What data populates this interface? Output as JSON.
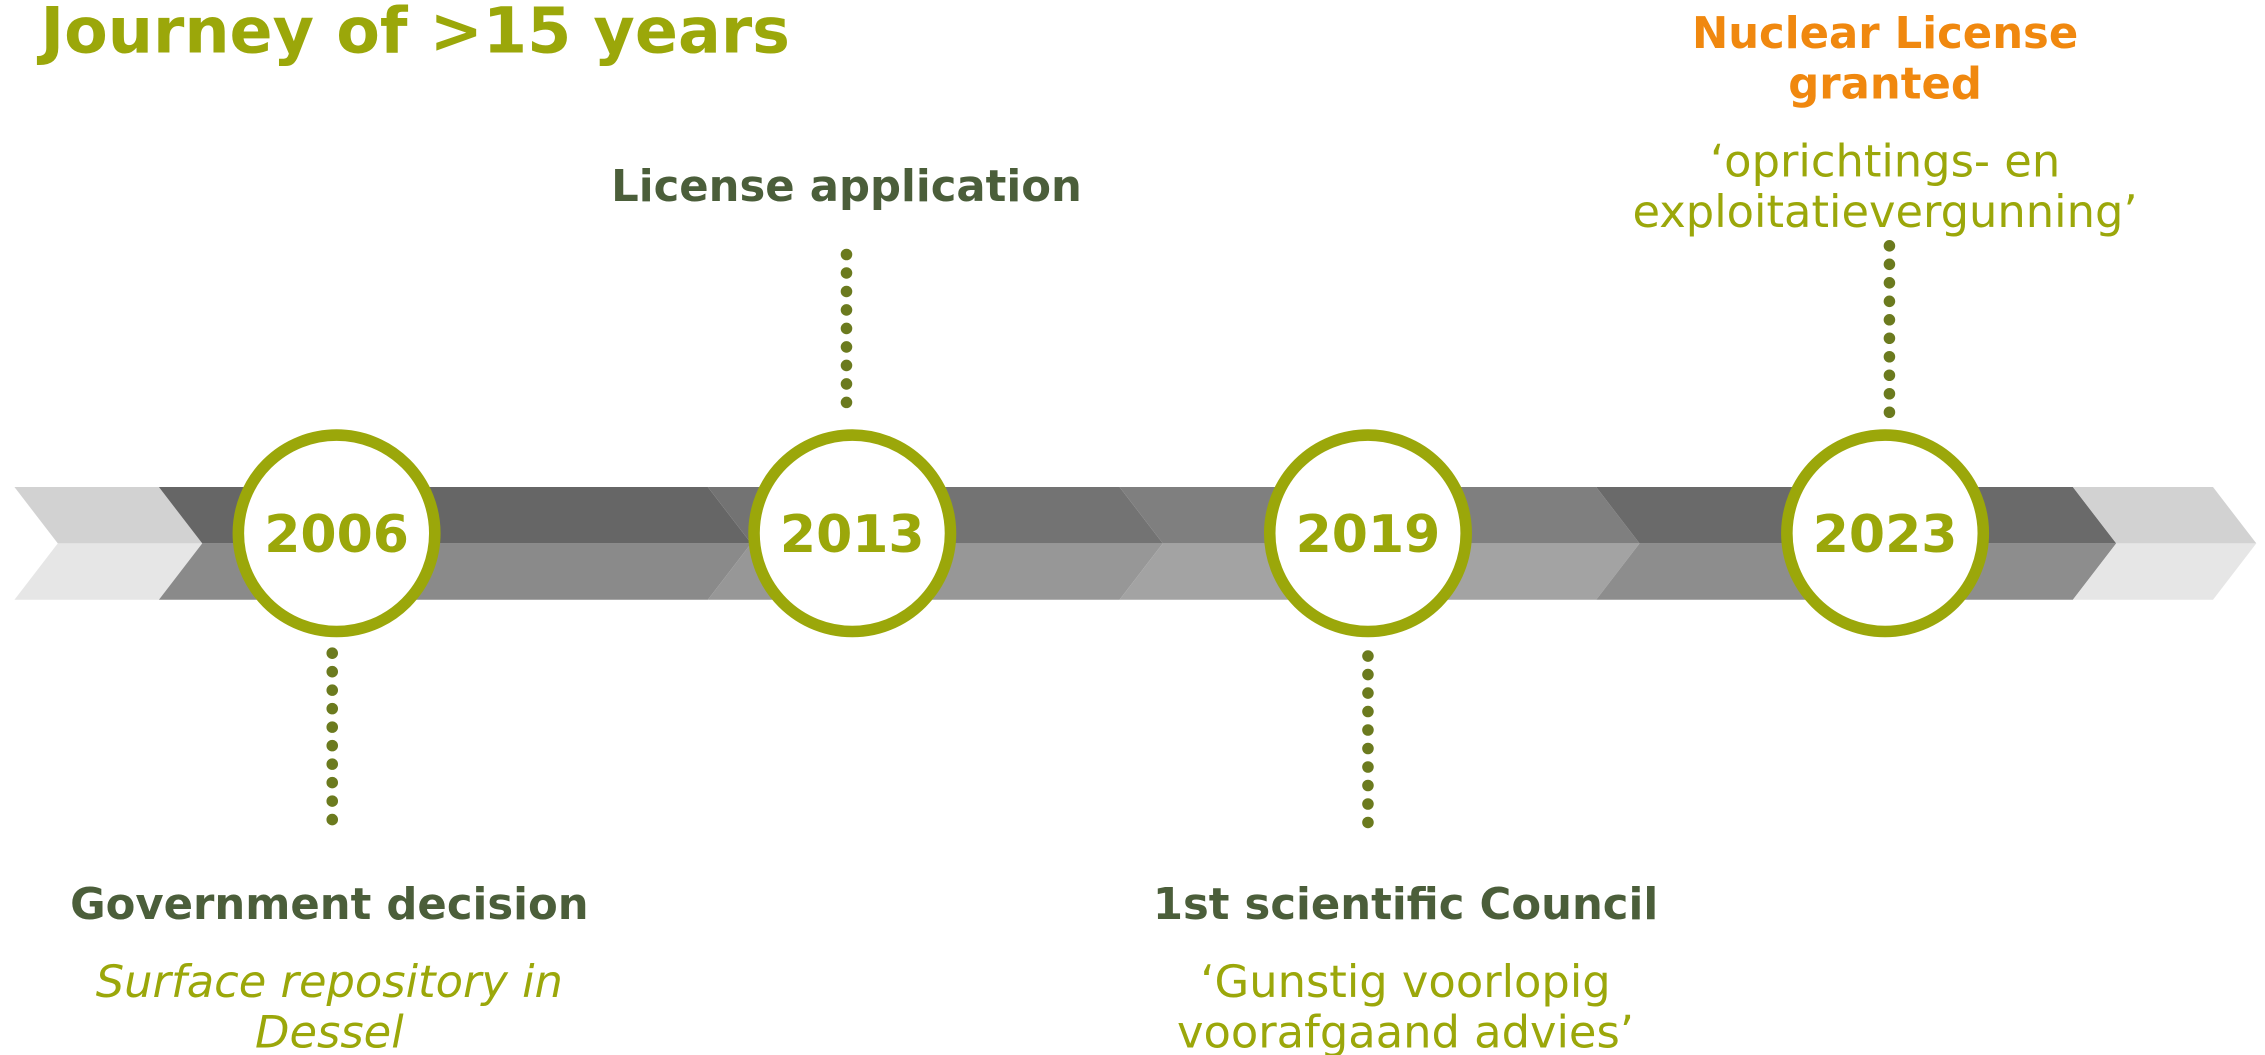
{
  "title": "Journey of >15 years",
  "milestones": [
    {
      "year": "2006",
      "heading": [
        "Government decision"
      ],
      "details": [
        "Surface repository in",
        "Dessel"
      ]
    },
    {
      "year": "2013",
      "heading": [
        "License application"
      ],
      "details": []
    },
    {
      "year": "2019",
      "heading": [
        "1st scientific Council"
      ],
      "details": [
        "‘Gunstig voorlopig",
        "voorafgaand advies’"
      ]
    },
    {
      "year": "2023",
      "heading": [
        "Nuclear License",
        "granted"
      ],
      "details": [
        "‘oprichtings- en",
        "exploitatievergunning’"
      ]
    }
  ]
}
